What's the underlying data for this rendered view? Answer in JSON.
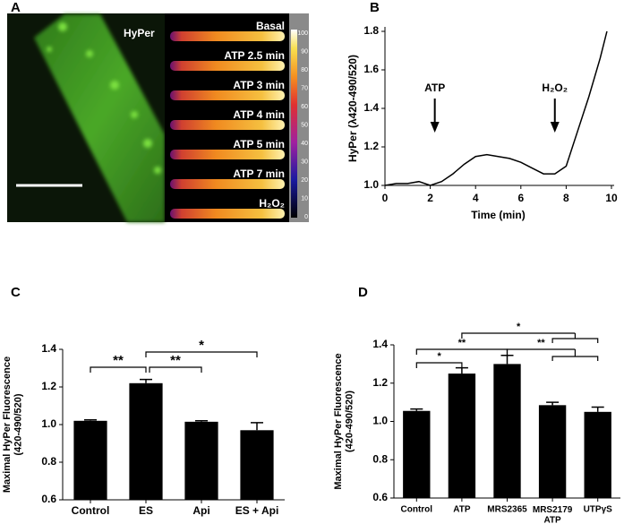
{
  "image_panel": {
    "panel_label": "A",
    "title": "HyPer",
    "strip_labels": [
      "Basal",
      "ATP 2.5 min",
      "ATP 3 min",
      "ATP 4 min",
      "ATP 5 min",
      "ATP 7 min",
      "H₂O₂"
    ],
    "colorbar_ticks": [
      0,
      10,
      20,
      30,
      40,
      50,
      60,
      70,
      80,
      90,
      100
    ]
  },
  "chart_data": [
    {
      "type": "line",
      "panel_label": "B",
      "xlabel": "Time (min)",
      "ylabel": "HyPer (λ420-490/520)",
      "x": [
        0,
        0.5,
        1,
        1.5,
        2,
        2.5,
        3,
        3.5,
        4,
        4.5,
        5,
        5.5,
        6,
        6.5,
        7,
        7.5,
        8,
        8.5,
        9,
        9.5,
        9.8
      ],
      "values": [
        1.0,
        1.01,
        1.01,
        1.02,
        1.0,
        1.02,
        1.06,
        1.11,
        1.15,
        1.16,
        1.15,
        1.14,
        1.12,
        1.09,
        1.06,
        1.06,
        1.1,
        1.28,
        1.46,
        1.66,
        1.8
      ],
      "color": "#000000",
      "xlim": [
        0,
        10
      ],
      "xticks": [
        0,
        2,
        4,
        6,
        8,
        10
      ],
      "ylim": [
        1.0,
        1.8
      ],
      "yticks": [
        {
          "value": 1.0,
          "label": "1.0"
        },
        {
          "value": 1.2,
          "label": "1.2"
        },
        {
          "value": 1.4,
          "label": "1.4"
        },
        {
          "value": 1.6,
          "label": "1.6"
        },
        {
          "value": 1.8,
          "label": "1.8"
        }
      ],
      "annotations": [
        "ATP",
        "H₂O₂"
      ]
    },
    {
      "type": "bar",
      "panel_label": "C",
      "ylabel": "Maximal HyPer Fluorescence\n(420-490/520)",
      "categories": [
        "Control",
        "ES",
        "Api",
        "ES + Api"
      ],
      "values": [
        1.02,
        1.22,
        1.015,
        0.97
      ],
      "errors": [
        0.005,
        0.02,
        0.005,
        0.04
      ],
      "color": "#000000",
      "ylim": [
        0.6,
        1.4
      ],
      "yticks": [
        {
          "value": 0.6,
          "label": "0.6"
        },
        {
          "value": 0.8,
          "label": "0.8"
        },
        {
          "value": 1.0,
          "label": "1.0"
        },
        {
          "value": 1.2,
          "label": "1.2"
        },
        {
          "value": 1.4,
          "label": "1.4"
        }
      ],
      "significance": [
        "**",
        "**",
        "*"
      ]
    },
    {
      "type": "bar",
      "panel_label": "D",
      "ylabel": "Maximal HyPer Fluorescence\n(420-490/520)",
      "categories": [
        "Control",
        "ATP",
        "MRS2365",
        "MRS2179\nATP",
        "UTPγS"
      ],
      "values": [
        1.055,
        1.25,
        1.3,
        1.085,
        1.05
      ],
      "errors": [
        0.01,
        0.03,
        0.045,
        0.015,
        0.025
      ],
      "color": "#000000",
      "ylim": [
        0.6,
        1.4
      ],
      "yticks": [
        {
          "value": 0.6,
          "label": "0.6"
        },
        {
          "value": 0.8,
          "label": "0.8"
        },
        {
          "value": 1.0,
          "label": "1.0"
        },
        {
          "value": 1.2,
          "label": "1.2"
        },
        {
          "value": 1.4,
          "label": "1.4"
        }
      ],
      "significance": [
        "*",
        "**",
        "**",
        "*"
      ]
    }
  ]
}
